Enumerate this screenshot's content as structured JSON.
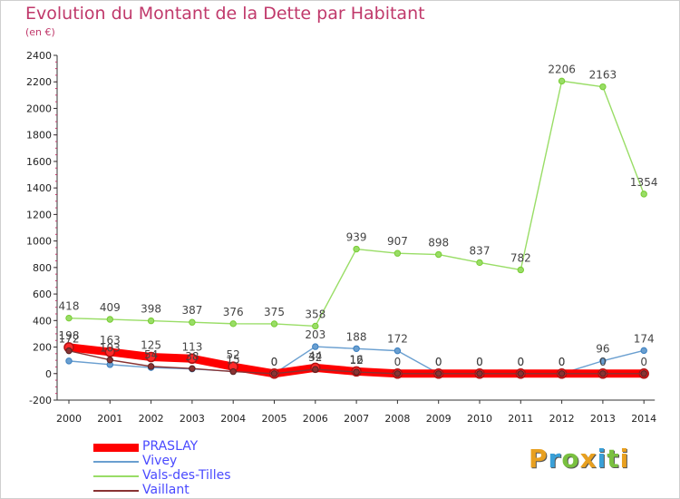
{
  "chart_data": {
    "type": "line",
    "title": "Evolution du Montant de la Dette par Habitant",
    "subtitle": "(en €)",
    "categories": [
      "2000",
      "2001",
      "2002",
      "2003",
      "2004",
      "2005",
      "2006",
      "2007",
      "2008",
      "2009",
      "2010",
      "2011",
      "2012",
      "2013",
      "2014"
    ],
    "ylim": [
      -200,
      2400
    ],
    "yticks": [
      -200,
      0,
      200,
      400,
      600,
      800,
      1000,
      1200,
      1400,
      1600,
      1800,
      2000,
      2200,
      2400
    ],
    "grid": false,
    "legend_position": "bottom-left",
    "series": [
      {
        "name": "PRASLAY",
        "color": "#ff0000",
        "marker": "#b01010",
        "values": [
          198,
          163,
          125,
          113,
          52,
          0,
          44,
          16,
          0,
          0,
          0,
          0,
          0,
          0,
          0
        ],
        "labels": [
          "198",
          "163",
          "125",
          "113",
          "52",
          "0",
          "44",
          "16",
          "0",
          "0",
          "0",
          "0",
          "0",
          "0",
          "0"
        ]
      },
      {
        "name": "Vivey",
        "color": "#6a9fd0",
        "marker": "#3a7fc0",
        "values": [
          95,
          68,
          45,
          35,
          17,
          0,
          203,
          188,
          172,
          0,
          0,
          0,
          0,
          96,
          174
        ],
        "labels": [
          "",
          "",
          "",
          "",
          "",
          "0",
          "203",
          "188",
          "172",
          "0",
          "0",
          "0",
          "0",
          "96",
          "174"
        ]
      },
      {
        "name": "Vals-des-Tilles",
        "color": "#99dd66",
        "marker": "#77cc33",
        "values": [
          418,
          409,
          398,
          387,
          376,
          375,
          358,
          939,
          907,
          898,
          837,
          782,
          2206,
          2163,
          1354
        ],
        "labels": [
          "418",
          "409",
          "398",
          "387",
          "376",
          "375",
          "358",
          "939",
          "907",
          "898",
          "837",
          "782",
          "2206",
          "2163",
          "1354"
        ]
      },
      {
        "name": "Vaillant",
        "color": "#883333",
        "marker": "#552222",
        "values": [
          172,
          103,
          54,
          38,
          15,
          0,
          32,
          12,
          0,
          0,
          0,
          0,
          0,
          0,
          0
        ],
        "labels": [
          "172",
          "103",
          "54",
          "38",
          "15",
          "",
          "32",
          "12",
          "",
          "",
          "",
          "",
          "",
          "",
          ""
        ]
      }
    ]
  },
  "brand": {
    "text": "Proxiti",
    "letters": [
      {
        "ch": "P",
        "color": "#e8a020"
      },
      {
        "ch": "r",
        "color": "#3aa0d8"
      },
      {
        "ch": "o",
        "color": "#7ac040"
      },
      {
        "ch": "x",
        "color": "#e8a020"
      },
      {
        "ch": "i",
        "color": "#3aa0d8"
      },
      {
        "ch": "t",
        "color": "#7ac040"
      },
      {
        "ch": "i",
        "color": "#e8a020"
      }
    ]
  }
}
